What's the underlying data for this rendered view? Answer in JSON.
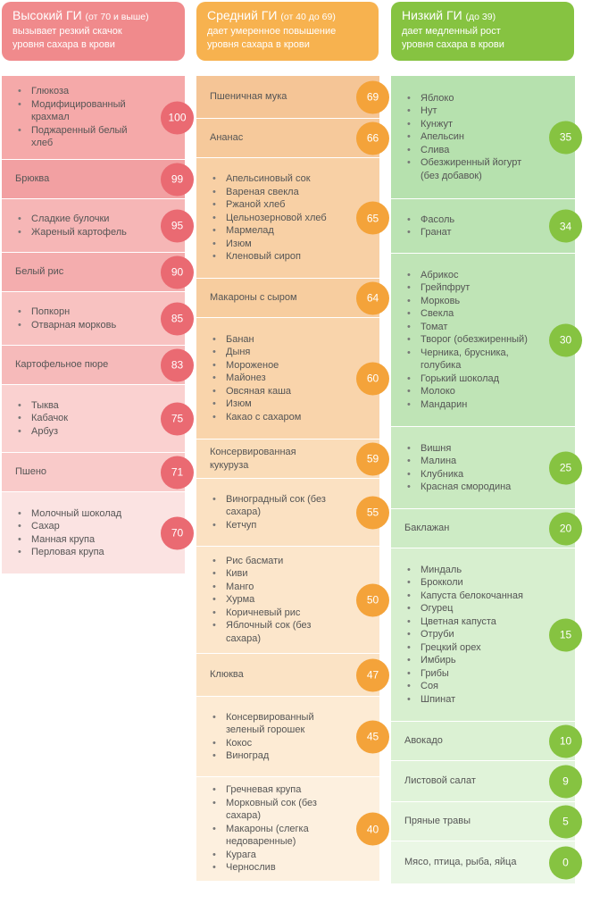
{
  "headers": {
    "high": {
      "name": "Высокий ГИ",
      "range": "(от 70 и выше)",
      "desc1": "вызывает резкий скачок",
      "desc2": "уровня сахара в крови"
    },
    "mid": {
      "name": "Средний ГИ",
      "range": "(от 40 до 69)",
      "desc1": "дает умеренное повышение",
      "desc2": "уровня сахара в крови"
    },
    "low": {
      "name": "Низкий ГИ",
      "range": "(до 39)",
      "desc1": "дает медленный рост",
      "desc2": "уровня сахара в крови"
    }
  },
  "colors": {
    "high_header": "#f08a8c",
    "mid_header": "#f7b24f",
    "low_header": "#86c341",
    "high_circle": "#ea6a72",
    "mid_circle": "#f4a33a",
    "low_circle": "#86c341"
  },
  "high": [
    {
      "gi": "100",
      "items": [
        "Глюкоза",
        "Модифицированный крахмал",
        "Поджаренный белый хлеб"
      ]
    },
    {
      "gi": "99",
      "label": "Брюква"
    },
    {
      "gi": "95",
      "items": [
        "Сладкие булочки",
        "Жареный картофель"
      ]
    },
    {
      "gi": "90",
      "label": "Белый рис"
    },
    {
      "gi": "85",
      "items": [
        "Попкорн",
        "Отварная морковь"
      ]
    },
    {
      "gi": "83",
      "label": "Картофельное пюре"
    },
    {
      "gi": "75",
      "items": [
        "Тыква",
        "Кабачок",
        "Арбуз"
      ]
    },
    {
      "gi": "71",
      "label": "Пшено"
    },
    {
      "gi": "70",
      "items": [
        "Молочный шоколад",
        "Сахар",
        "Манная крупа",
        "Перловая крупа"
      ]
    }
  ],
  "mid": [
    {
      "gi": "69",
      "label": "Пшеничная мука"
    },
    {
      "gi": "66",
      "label": "Ананас"
    },
    {
      "gi": "65",
      "items": [
        "Апельсиновый сок",
        "Вареная свекла",
        "Ржаной хлеб",
        "Цельнозерновой хлеб",
        "Мармелад",
        "Изюм",
        "Кленовый сироп"
      ]
    },
    {
      "gi": "64",
      "label": "Макароны с сыром"
    },
    {
      "gi": "60",
      "items": [
        "Банан",
        "Дыня",
        "Мороженое",
        "Майонез",
        "Овсяная каша",
        "Изюм",
        "Какао с сахаром"
      ]
    },
    {
      "gi": "59",
      "label": "Консервированная кукуруза"
    },
    {
      "gi": "55",
      "items": [
        "Виноградный сок (без сахара)",
        "Кетчуп"
      ]
    },
    {
      "gi": "50",
      "items": [
        "Рис басмати",
        "Киви",
        "Манго",
        "Хурма",
        "Коричневый рис",
        "Яблочный сок (без сахара)"
      ]
    },
    {
      "gi": "47",
      "label": "Клюква"
    },
    {
      "gi": "45",
      "items": [
        "Консервированный зеленый горошек",
        "Кокос",
        "Виноград"
      ]
    },
    {
      "gi": "40",
      "items": [
        "Гречневая крупа",
        "Морковный сок (без сахара)",
        "Макароны (слегка недоваренные)",
        "Курага",
        "Чернослив"
      ]
    }
  ],
  "low": [
    {
      "gi": "35",
      "items": [
        "Яблоко",
        "Нут",
        "Кунжут",
        "Апельсин",
        "Слива",
        "Обезжиренный йогурт (без добавок)"
      ]
    },
    {
      "gi": "34",
      "items": [
        "Фасоль",
        "Гранат"
      ]
    },
    {
      "gi": "30",
      "items": [
        "Абрикос",
        "Грейпфрут",
        "Морковь",
        "Свекла",
        "Томат",
        "Творог (обезжиренный)",
        "Черника, брусника, голубика",
        "Горький шоколад",
        "Молоко",
        "Мандарин"
      ]
    },
    {
      "gi": "25",
      "items": [
        "Вишня",
        "Малина",
        "Клубника",
        "Красная смородина"
      ]
    },
    {
      "gi": "20",
      "label": "Баклажан"
    },
    {
      "gi": "15",
      "items": [
        "Миндаль",
        "Брокколи",
        "Капуста белокочанная",
        "Огурец",
        "Цветная капуста",
        "Отруби",
        "Грецкий орех",
        "Имбирь",
        "Грибы",
        "Соя",
        "Шпинат"
      ]
    },
    {
      "gi": "10",
      "label": "Авокадо"
    },
    {
      "gi": "9",
      "label": "Листовой салат"
    },
    {
      "gi": "5",
      "label": "Пряные травы"
    },
    {
      "gi": "0",
      "label": "Мясо, птица, рыба, яйца"
    }
  ]
}
